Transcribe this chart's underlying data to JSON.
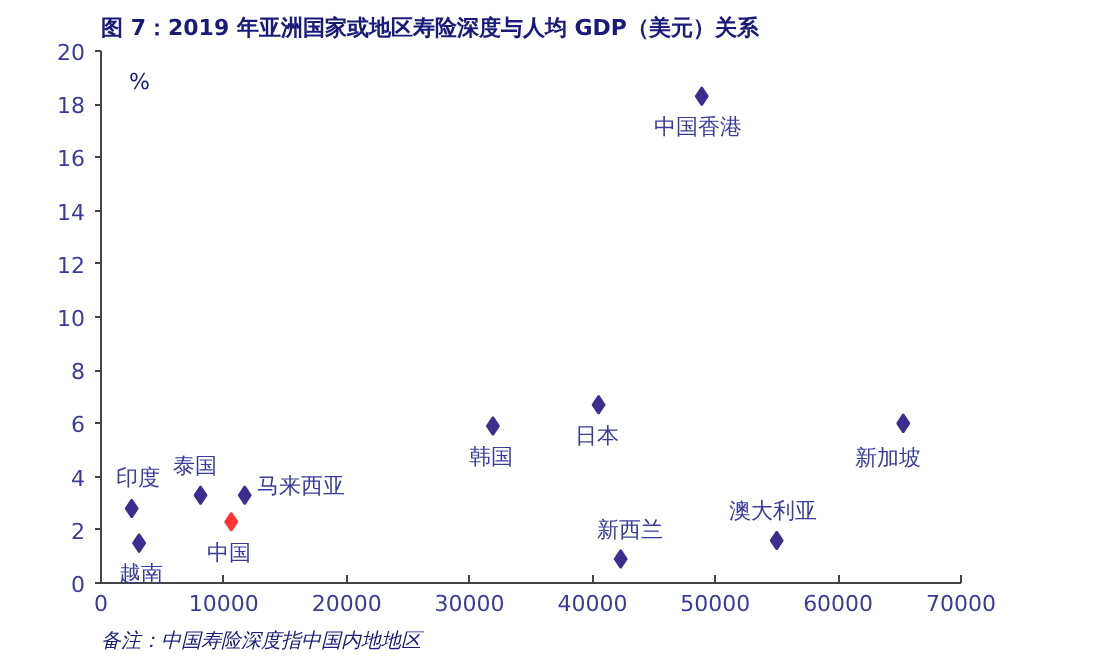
{
  "chart_data": {
    "type": "scatter",
    "title": "图 7：2019 年亚洲国家或地区寿险深度与人均 GDP（美元）关系",
    "ylabel": "%",
    "x": [
      2500,
      3100,
      8100,
      10600,
      11700,
      31900,
      40500,
      42300,
      48900,
      55000,
      65300
    ],
    "values": [
      2.8,
      1.5,
      3.3,
      2.3,
      3.3,
      5.9,
      6.7,
      0.9,
      18.3,
      1.6,
      6.0
    ],
    "colors": [
      "#3b2e8f",
      "#3b2e8f",
      "#3b2e8f",
      "#ff3333",
      "#3b2e8f",
      "#3b2e8f",
      "#3b2e8f",
      "#3b2e8f",
      "#3b2e8f",
      "#3b2e8f",
      "#3b2e8f"
    ],
    "marker": "diamond",
    "grid": false,
    "xlim": [
      0,
      70000
    ],
    "xticks": [
      0,
      10000,
      20000,
      30000,
      40000,
      50000,
      60000,
      70000
    ],
    "ylim": [
      0,
      20
    ],
    "yticks": [
      0,
      2,
      4,
      6,
      8,
      10,
      12,
      14,
      16,
      18,
      20
    ],
    "annotations": [
      {
        "text": "印度",
        "x": 2500,
        "y": 2.8
      },
      {
        "text": "越南",
        "x": 3100,
        "y": 1.5
      },
      {
        "text": "泰国",
        "x": 8100,
        "y": 3.3
      },
      {
        "text": "中国",
        "x": 10600,
        "y": 2.3
      },
      {
        "text": "马来西亚",
        "x": 11700,
        "y": 3.3
      },
      {
        "text": "韩国",
        "x": 31900,
        "y": 5.9
      },
      {
        "text": "日本",
        "x": 40500,
        "y": 6.7
      },
      {
        "text": "新西兰",
        "x": 42300,
        "y": 0.9
      },
      {
        "text": "中国香港",
        "x": 48900,
        "y": 18.3
      },
      {
        "text": "澳大利亚",
        "x": 55000,
        "y": 1.6
      },
      {
        "text": "新加坡",
        "x": 65300,
        "y": 6.0
      },
      "备注：中国寿险深度指中国内地地区"
    ]
  }
}
